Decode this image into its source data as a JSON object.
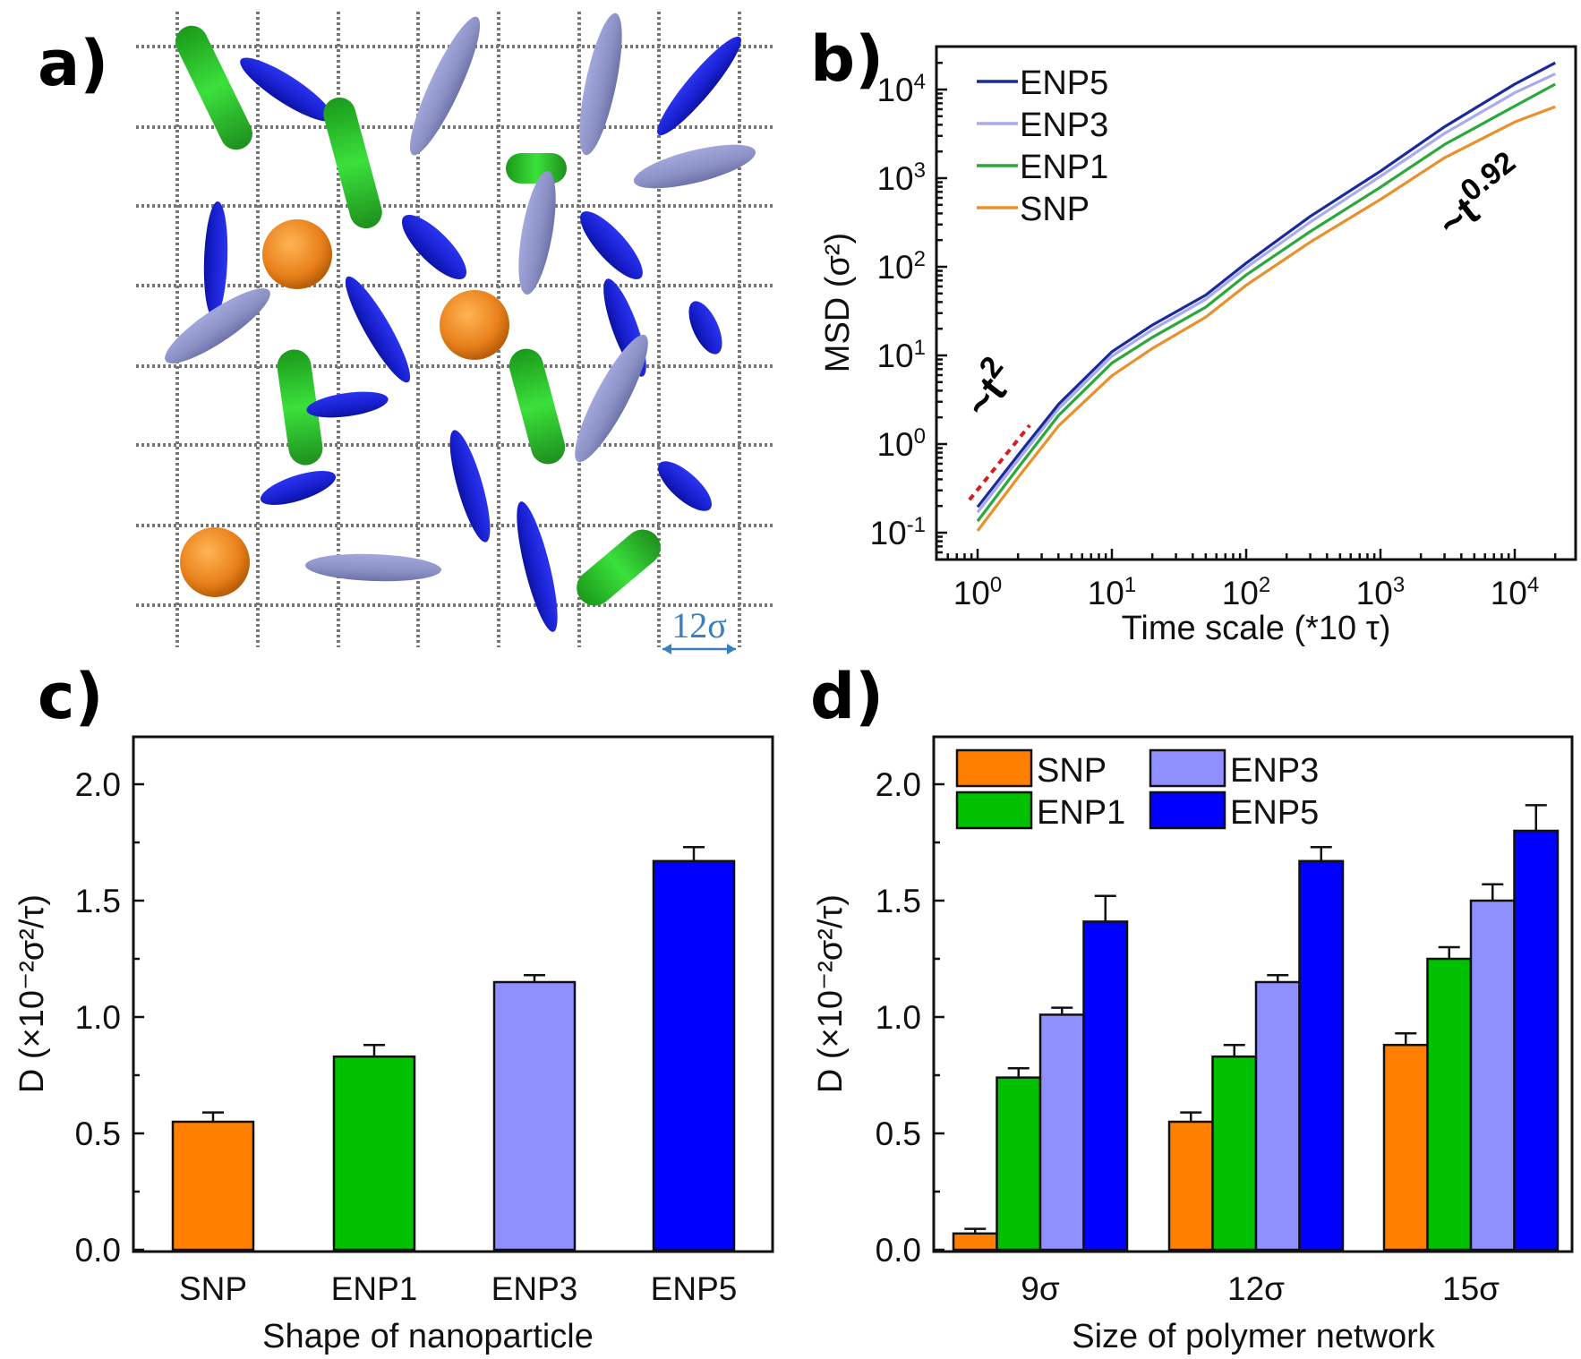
{
  "figure": {
    "panels": [
      "a)",
      "b)",
      "c)",
      "d)"
    ]
  },
  "panel_a": {
    "label": "a)",
    "description": "Nanoparticles of different shapes dispersed in a polymer network grid",
    "scale_bar_label": "12σ",
    "particle_types": [
      {
        "name": "SNP",
        "shape": "sphere",
        "color": "#f08a1c",
        "count": 3
      },
      {
        "name": "ENP1",
        "shape": "spherocylinder",
        "color": "#2ec42e",
        "count": 6
      },
      {
        "name": "ENP3",
        "shape": "ellipsoid",
        "color": "#8e93c9",
        "count": 8
      },
      {
        "name": "ENP5",
        "shape": "ellipsoid",
        "color": "#1a22d6",
        "count": 14
      }
    ],
    "grid_color": "#777777"
  },
  "colors": {
    "SNP": "#ff8000",
    "ENP1": "#00c000",
    "ENP3": "#8f8fff",
    "ENP5": "#0000ff",
    "line_SNP": "#e8902a",
    "line_ENP1": "#2aa83a",
    "line_ENP3": "#a8acec",
    "line_ENP5": "#1a2a9c",
    "guide": "#d02020",
    "scale_bar": "#3a7fc0"
  },
  "chart_data": [
    {
      "id": "b",
      "type": "line",
      "title": "",
      "panel_label": "b)",
      "xlabel": "Time scale (*10 τ)",
      "ylabel": "MSD (σ²)",
      "xscale": "log",
      "yscale": "log",
      "xlim": [
        0.5,
        25000
      ],
      "ylim": [
        0.05,
        30000
      ],
      "x_ticks": [
        {
          "value": 1,
          "base": "10",
          "exp": "0"
        },
        {
          "value": 10,
          "base": "10",
          "exp": "1"
        },
        {
          "value": 100,
          "base": "10",
          "exp": "2"
        },
        {
          "value": 1000,
          "base": "10",
          "exp": "3"
        },
        {
          "value": 10000,
          "base": "10",
          "exp": "4"
        }
      ],
      "y_ticks": [
        {
          "value": 0.1,
          "base": "10",
          "exp": "-1"
        },
        {
          "value": 1,
          "base": "10",
          "exp": "0"
        },
        {
          "value": 10,
          "base": "10",
          "exp": "1"
        },
        {
          "value": 100,
          "base": "10",
          "exp": "2"
        },
        {
          "value": 1000,
          "base": "10",
          "exp": "3"
        },
        {
          "value": 10000,
          "base": "10",
          "exp": "4"
        }
      ],
      "legend_position": "top-left",
      "series": [
        {
          "name": "ENP5",
          "color": "#1a2a9c",
          "x": [
            1,
            2,
            4,
            10,
            20,
            50,
            100,
            300,
            1000,
            3000,
            10000,
            20000
          ],
          "y": [
            0.195,
            0.75,
            2.8,
            11,
            22,
            48,
            110,
            370,
            1200,
            3800,
            11500,
            20000
          ]
        },
        {
          "name": "ENP3",
          "color": "#a8acec",
          "x": [
            1,
            2,
            4,
            10,
            20,
            50,
            100,
            300,
            1000,
            3000,
            10000,
            20000
          ],
          "y": [
            0.17,
            0.66,
            2.5,
            9.8,
            19.5,
            43,
            98,
            320,
            1050,
            3200,
            9200,
            15000
          ]
        },
        {
          "name": "ENP1",
          "color": "#2aa83a",
          "x": [
            1,
            2,
            4,
            10,
            20,
            50,
            100,
            300,
            1000,
            3000,
            10000,
            20000
          ],
          "y": [
            0.135,
            0.54,
            2.1,
            8.2,
            16,
            35,
            81,
            250,
            790,
            2400,
            6500,
            11500
          ]
        },
        {
          "name": "SNP",
          "color": "#e8902a",
          "x": [
            1,
            2,
            4,
            10,
            20,
            50,
            100,
            300,
            1000,
            3000,
            10000,
            20000
          ],
          "y": [
            0.105,
            0.42,
            1.6,
            5.9,
            12,
            27,
            62,
            190,
            575,
            1700,
            4300,
            6400
          ]
        }
      ],
      "guide_line": {
        "label": "~t²",
        "style": "dashed",
        "color": "#d02020",
        "x": [
          0.87,
          2.44
        ],
        "y": [
          0.235,
          1.63
        ]
      },
      "annotations": [
        {
          "text": "~t",
          "superscript": "2",
          "near": "early-time"
        },
        {
          "text": "~t",
          "superscript": "0.92",
          "near": "late-time"
        }
      ]
    },
    {
      "id": "c",
      "type": "bar",
      "panel_label": "c)",
      "title": "",
      "xlabel": "Shape of nanoparticle",
      "ylabel": "D (×10⁻²σ²/τ)",
      "ylim": [
        0,
        2.2
      ],
      "y_ticks": [
        "0.0",
        "0.5",
        "1.0",
        "1.5",
        "2.0"
      ],
      "y_tick_values": [
        0,
        0.5,
        1.0,
        1.5,
        2.0
      ],
      "categories": [
        "SNP",
        "ENP1",
        "ENP3",
        "ENP5"
      ],
      "values": [
        0.55,
        0.83,
        1.15,
        1.67
      ],
      "errors": [
        0.04,
        0.05,
        0.03,
        0.06
      ],
      "colors": [
        "#ff8000",
        "#00c000",
        "#8f8fff",
        "#0000ff"
      ]
    },
    {
      "id": "d",
      "type": "bar",
      "panel_label": "d)",
      "title": "",
      "xlabel": "Size of polymer network",
      "ylabel": "D (×10⁻²σ²/τ)",
      "ylim": [
        0,
        2.2
      ],
      "y_ticks": [
        "0.0",
        "0.5",
        "1.0",
        "1.5",
        "2.0"
      ],
      "y_tick_values": [
        0,
        0.5,
        1.0,
        1.5,
        2.0
      ],
      "categories": [
        "9σ",
        "12σ",
        "15σ"
      ],
      "legend_position": "top-left",
      "series": [
        {
          "name": "SNP",
          "color": "#ff8000",
          "values": [
            0.07,
            0.55,
            0.88
          ],
          "errors": [
            0.02,
            0.04,
            0.05
          ]
        },
        {
          "name": "ENP1",
          "color": "#00c000",
          "values": [
            0.74,
            0.83,
            1.25
          ],
          "errors": [
            0.04,
            0.05,
            0.05
          ]
        },
        {
          "name": "ENP3",
          "color": "#8f8fff",
          "values": [
            1.01,
            1.15,
            1.5
          ],
          "errors": [
            0.03,
            0.03,
            0.07
          ]
        },
        {
          "name": "ENP5",
          "color": "#0000ff",
          "values": [
            1.41,
            1.67,
            1.8
          ],
          "errors": [
            0.11,
            0.06,
            0.11
          ]
        }
      ]
    }
  ]
}
